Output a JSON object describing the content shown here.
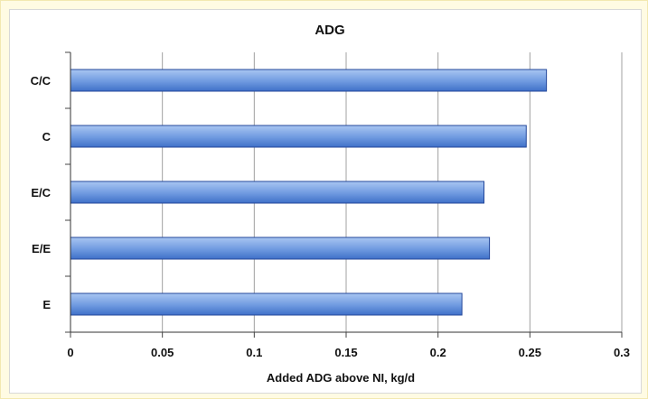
{
  "chart_data": {
    "type": "bar",
    "orientation": "horizontal",
    "title": "ADG",
    "xlabel": "Added ADG above NI, kg/d",
    "ylabel": "",
    "categories": [
      "C/C",
      "C",
      "E/C",
      "E/E",
      "E"
    ],
    "values": [
      0.259,
      0.248,
      0.225,
      0.228,
      0.213
    ],
    "xlim": [
      0,
      0.3
    ],
    "xticks": [
      0,
      0.05,
      0.1,
      0.15,
      0.2,
      0.25,
      0.3
    ],
    "xtick_labels": [
      "0",
      "0.05",
      "0.1",
      "0.15",
      "0.2",
      "0.25",
      "0.3"
    ],
    "grid": true,
    "legend": "none",
    "colors": {
      "bar_light": "#a9c6f2",
      "bar_dark": "#3f70c8",
      "bar_stroke": "#23479a",
      "grid": "#a0a0a0",
      "background": "#fffbe3"
    }
  }
}
